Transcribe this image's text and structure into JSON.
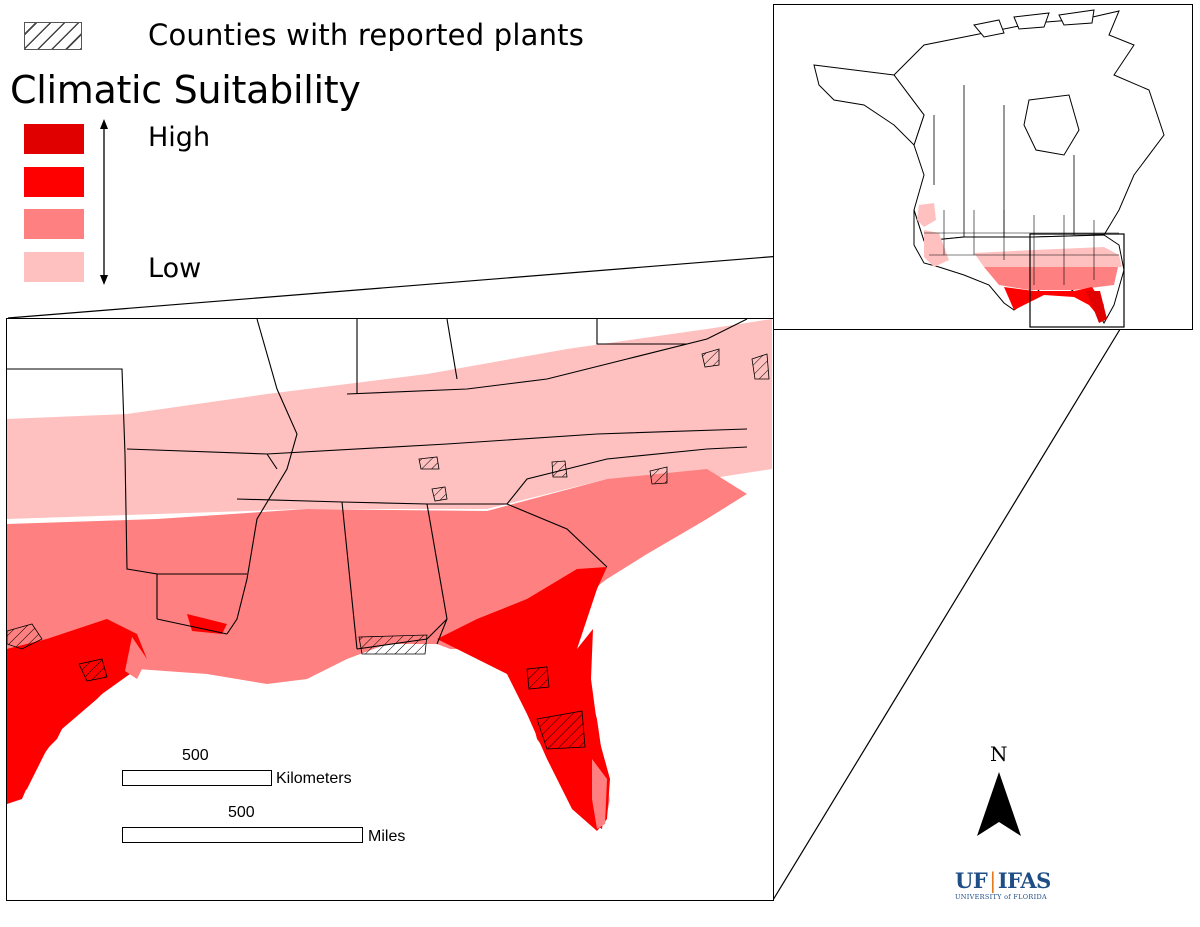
{
  "legend": {
    "hatch_label": "Counties with reported plants",
    "title": "Climatic Suitability",
    "high_label": "High",
    "low_label": "Low",
    "classes": [
      {
        "level": "highest",
        "color": "#e00000"
      },
      {
        "level": "high",
        "color": "#ff0000"
      },
      {
        "level": "medium",
        "color": "#ff8080"
      },
      {
        "level": "low",
        "color": "#ffc0c0"
      }
    ]
  },
  "colors": {
    "highest": "#e00000",
    "high": "#ff0000",
    "medium": "#ff8080",
    "low": "#ffc0c0",
    "ufifas_blue": "#1f4d86",
    "ufifas_orange": "#e07b20"
  },
  "scale_bars": {
    "km_value": "500",
    "km_unit": "Kilometers",
    "mi_value": "500",
    "mi_unit": "Miles"
  },
  "north_arrow": {
    "letter": "N",
    "icon": "north-arrow-icon"
  },
  "logo": {
    "main_left": "UF",
    "separator": "|",
    "main_right": "IFAS",
    "sub": "UNIVERSITY of FLORIDA"
  }
}
